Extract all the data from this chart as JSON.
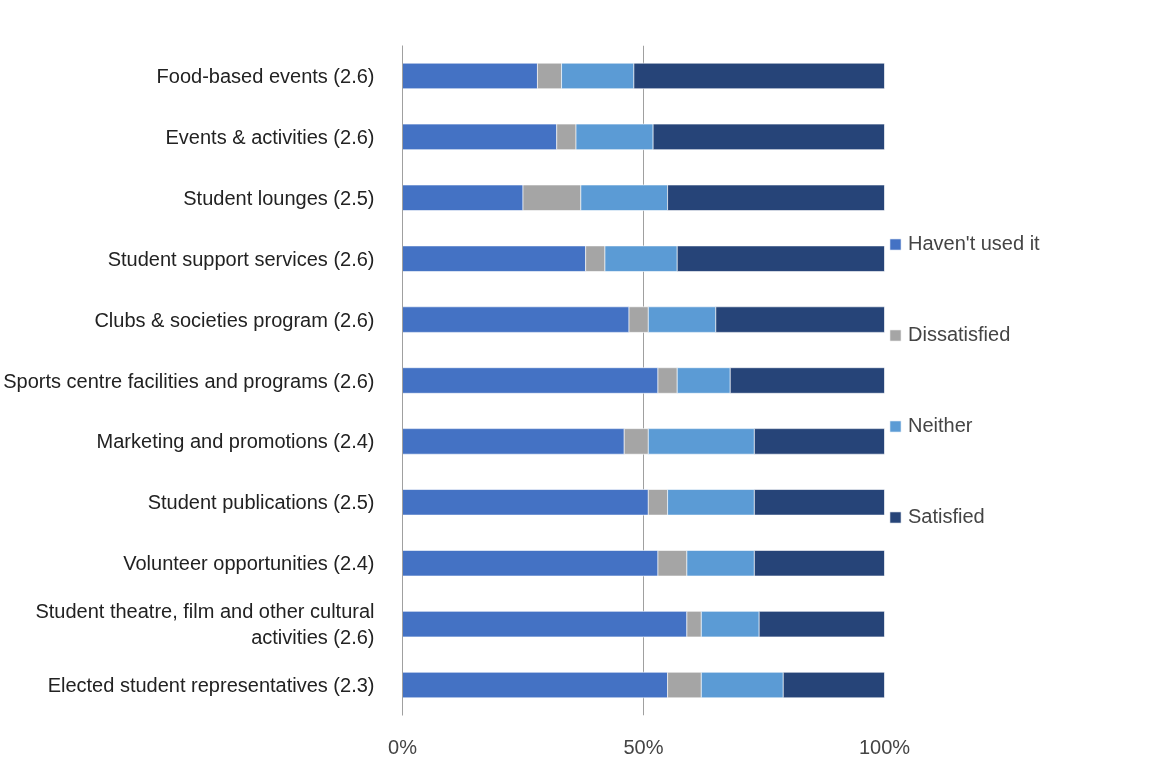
{
  "chart_data": {
    "type": "bar",
    "orientation": "horizontal",
    "stacked": true,
    "categories": [
      "Food-based events (2.6)",
      "Events & activities (2.6)",
      "Student lounges (2.5)",
      "Student support services (2.6)",
      "Clubs & societies program (2.6)",
      "Sports centre facilities and programs (2.6)",
      "Marketing and promotions (2.4)",
      "Student publications (2.5)",
      "Volunteer opportunities (2.4)",
      "Student theatre, film and other cultural activities (2.6)",
      "Elected student representatives (2.3)"
    ],
    "series": [
      {
        "name": "Haven't used it",
        "color": "#4472c4",
        "values": [
          28,
          32,
          25,
          38,
          47,
          53,
          46,
          51,
          53,
          59,
          55
        ]
      },
      {
        "name": "Dissatisfied",
        "color": "#a5a5a5",
        "values": [
          5,
          4,
          12,
          4,
          4,
          4,
          5,
          4,
          6,
          3,
          7
        ]
      },
      {
        "name": "Neither",
        "color": "#5b9bd5",
        "values": [
          15,
          16,
          18,
          15,
          14,
          11,
          22,
          18,
          14,
          12,
          17
        ]
      },
      {
        "name": "Satisfied",
        "color": "#264478",
        "values": [
          52,
          48,
          45,
          43,
          35,
          32,
          27,
          27,
          27,
          26,
          21
        ]
      }
    ],
    "xlim": [
      0,
      100
    ],
    "xticks": [
      {
        "value": 0,
        "label": "0%"
      },
      {
        "value": 50,
        "label": "50%"
      },
      {
        "value": 100,
        "label": "100%"
      }
    ],
    "grid": "x",
    "legend": "right"
  }
}
